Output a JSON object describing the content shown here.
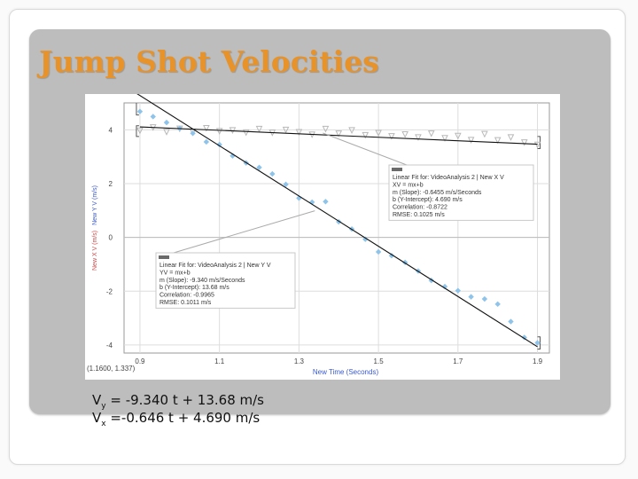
{
  "slide": {
    "title": "Jump Shot Velocities",
    "equations": [
      {
        "var": "V",
        "sub": "y",
        "expr": " = -9.340 t + 13.68 m/s"
      },
      {
        "var": "V",
        "sub": "x",
        "expr": " =-0.646 t + 4.690 m/s"
      }
    ]
  },
  "chart_data": {
    "type": "scatter",
    "xlabel": "New Time (Seconds)",
    "ylabel": "New X V (m/s)",
    "ylabel2": "New Y V (m/s)",
    "xlim": [
      0.86,
      1.93
    ],
    "ylim": [
      -4.3,
      5.0
    ],
    "x_ticks": [
      0.9,
      1.1,
      1.3,
      1.5,
      1.7,
      1.9
    ],
    "y_ticks": [
      -4,
      -2,
      0,
      2,
      4
    ],
    "y_tick_labels": [
      "-4",
      "-2",
      "0",
      "2",
      "4"
    ],
    "grid": true,
    "cursor_readout": "(1.1600, 1.337)",
    "colors": {
      "x_points": "#b8b8b8",
      "y_points": "#8fc4ea",
      "fit": "#111111",
      "axis_label": "#d04a4a",
      "xlabel": "#3a5ad0"
    },
    "series": [
      {
        "id": "vx",
        "x": [
          0.9,
          0.933,
          0.967,
          1.0,
          1.033,
          1.067,
          1.1,
          1.133,
          1.167,
          1.2,
          1.233,
          1.267,
          1.3,
          1.333,
          1.367,
          1.4,
          1.433,
          1.467,
          1.5,
          1.533,
          1.567,
          1.6,
          1.633,
          1.667,
          1.7,
          1.733,
          1.767,
          1.8,
          1.833,
          1.867,
          1.9
        ],
        "y": [
          3.97,
          4.09,
          3.92,
          4.04,
          3.93,
          4.06,
          3.95,
          3.98,
          3.9,
          4.03,
          3.89,
          4.0,
          3.91,
          3.82,
          4.03,
          3.86,
          3.98,
          3.8,
          3.88,
          3.76,
          3.83,
          3.72,
          3.86,
          3.69,
          3.77,
          3.62,
          3.84,
          3.61,
          3.72,
          3.53,
          3.44
        ],
        "fit": {
          "m": -0.6455,
          "b": 4.69,
          "lines": [
            "Linear Fit for: VideoAnalysis 2 | New X V",
            "XV = mx+b",
            "m (Slope): -0.6455 m/s/Seconds",
            "b (Y-Intercept): 4.690 m/s",
            "Correlation: -0.8722",
            "RMSE: 0.1025 m/s"
          ]
        }
      },
      {
        "id": "vy",
        "x": [
          0.9,
          0.933,
          0.967,
          1.0,
          1.033,
          1.067,
          1.1,
          1.133,
          1.167,
          1.2,
          1.233,
          1.267,
          1.3,
          1.333,
          1.367,
          1.4,
          1.433,
          1.467,
          1.5,
          1.533,
          1.567,
          1.6,
          1.633,
          1.667,
          1.7,
          1.733,
          1.767,
          1.8,
          1.833,
          1.867,
          1.9
        ],
        "y": [
          4.68,
          4.49,
          4.27,
          4.05,
          3.87,
          3.55,
          3.45,
          3.03,
          2.77,
          2.6,
          2.36,
          1.97,
          1.46,
          1.31,
          1.33,
          0.58,
          0.31,
          -0.07,
          -0.54,
          -0.68,
          -0.93,
          -1.25,
          -1.6,
          -1.83,
          -1.98,
          -2.21,
          -2.29,
          -2.48,
          -3.13,
          -3.72,
          -3.92
        ],
        "fit": {
          "m": -9.34,
          "b": 13.68,
          "lines": [
            "Linear Fit for: VideoAnalysis 2 | New Y V",
            "YV = mx+b",
            "m (Slope): -9.340 m/s/Seconds",
            "b (Y-Intercept): 13.68 m/s",
            "Correlation: -0.9965",
            "RMSE: 0.1011 m/s"
          ]
        }
      }
    ]
  }
}
